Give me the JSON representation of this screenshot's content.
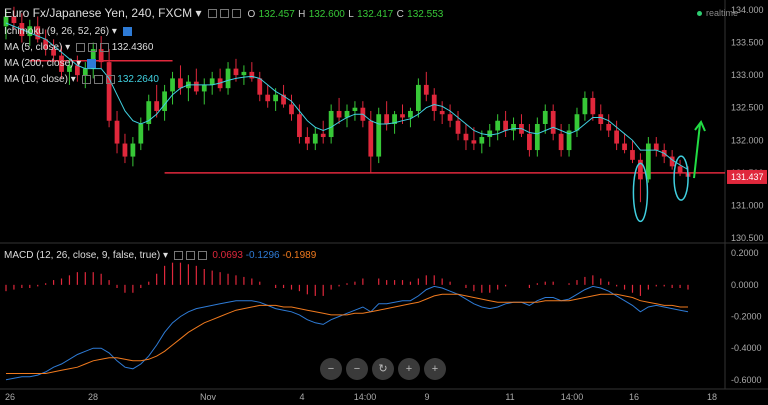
{
  "header": {
    "symbol": "Euro Fx/Japanese Yen, 240, FXCM",
    "open_label": "O",
    "open": "132.457",
    "high_label": "H",
    "high": "132.600",
    "low_label": "L",
    "low": "132.417",
    "close_label": "C",
    "close": "132.553",
    "realtime": "realtime"
  },
  "indicators": {
    "ichimoku": "Ichimoku (9, 26, 52, 26)",
    "ma1": "MA (5, close)",
    "ma1_value": "132.4360",
    "ma2": "MA (200, close)",
    "ma3": "MA (10, close)",
    "ma3_value": "132.2640",
    "macd": "MACD (12, 26, close, 9, false, true)",
    "macd_hist": "0.0693",
    "macd_line": "-0.1296",
    "macd_signal": "-0.1989"
  },
  "last_price_tag": "131.437",
  "colors": {
    "bull": "#37c837",
    "bear": "#e0283c",
    "ma_cyan": "#40d0e0",
    "resistance": "#e0283c",
    "arrow": "#22dd44",
    "macd_line": "#2e7bd6",
    "signal_line": "#f07a1e",
    "histogram": "#e0283c"
  },
  "icons": [
    "gear-icon",
    "eye-icon",
    "close-icon",
    "up-arrow-icon",
    "circle-highlight-icon"
  ],
  "nav_buttons": [
    "−",
    "−",
    "↻",
    "+",
    "+"
  ],
  "chart_data": [
    {
      "type": "candlestick",
      "title": "Euro Fx/Japanese Yen, 240, FXCM",
      "x_ticks": [
        "26",
        "28",
        "Nov",
        "4",
        "14:00",
        "9",
        "11",
        "14:00",
        "16",
        "18"
      ],
      "y_ticks": [
        "134.000",
        "133.500",
        "133.000",
        "132.500",
        "132.000",
        "131.500",
        "131.000",
        "130.500"
      ],
      "ylim": [
        130.5,
        134.0
      ],
      "grid": false,
      "candles": [
        {
          "o": 133.75,
          "h": 134.0,
          "l": 133.55,
          "c": 133.9
        },
        {
          "o": 133.9,
          "h": 134.05,
          "l": 133.7,
          "c": 133.8
        },
        {
          "o": 133.8,
          "h": 133.95,
          "l": 133.5,
          "c": 133.6
        },
        {
          "o": 133.6,
          "h": 133.85,
          "l": 133.45,
          "c": 133.75
        },
        {
          "o": 133.75,
          "h": 133.9,
          "l": 133.5,
          "c": 133.55
        },
        {
          "o": 133.55,
          "h": 133.7,
          "l": 133.3,
          "c": 133.4
        },
        {
          "o": 133.4,
          "h": 133.55,
          "l": 133.2,
          "c": 133.3
        },
        {
          "o": 133.3,
          "h": 133.45,
          "l": 132.95,
          "c": 133.05
        },
        {
          "o": 133.05,
          "h": 133.25,
          "l": 132.85,
          "c": 133.15
        },
        {
          "o": 133.15,
          "h": 133.3,
          "l": 132.9,
          "c": 133.0
        },
        {
          "o": 133.0,
          "h": 133.2,
          "l": 132.8,
          "c": 133.1
        },
        {
          "o": 133.1,
          "h": 133.5,
          "l": 132.95,
          "c": 133.4
        },
        {
          "o": 133.4,
          "h": 133.6,
          "l": 133.1,
          "c": 133.2
        },
        {
          "o": 133.2,
          "h": 133.4,
          "l": 132.2,
          "c": 132.3
        },
        {
          "o": 132.3,
          "h": 132.45,
          "l": 131.8,
          "c": 131.95
        },
        {
          "o": 131.95,
          "h": 132.1,
          "l": 131.65,
          "c": 131.75
        },
        {
          "o": 131.75,
          "h": 132.05,
          "l": 131.6,
          "c": 131.95
        },
        {
          "o": 131.95,
          "h": 132.35,
          "l": 131.85,
          "c": 132.25
        },
        {
          "o": 132.25,
          "h": 132.7,
          "l": 132.15,
          "c": 132.6
        },
        {
          "o": 132.6,
          "h": 132.85,
          "l": 132.35,
          "c": 132.45
        },
        {
          "o": 132.45,
          "h": 132.85,
          "l": 132.3,
          "c": 132.75
        },
        {
          "o": 132.75,
          "h": 133.05,
          "l": 132.55,
          "c": 132.95
        },
        {
          "o": 132.95,
          "h": 133.15,
          "l": 132.7,
          "c": 132.8
        },
        {
          "o": 132.8,
          "h": 133.0,
          "l": 132.6,
          "c": 132.9
        },
        {
          "o": 132.9,
          "h": 133.1,
          "l": 132.7,
          "c": 132.75
        },
        {
          "o": 132.75,
          "h": 132.95,
          "l": 132.55,
          "c": 132.85
        },
        {
          "o": 132.85,
          "h": 133.05,
          "l": 132.7,
          "c": 132.95
        },
        {
          "o": 132.95,
          "h": 133.1,
          "l": 132.75,
          "c": 132.8
        },
        {
          "o": 132.8,
          "h": 133.2,
          "l": 132.7,
          "c": 133.1
        },
        {
          "o": 133.1,
          "h": 133.25,
          "l": 132.9,
          "c": 133.0
        },
        {
          "o": 133.0,
          "h": 133.15,
          "l": 132.85,
          "c": 133.05
        },
        {
          "o": 133.05,
          "h": 133.2,
          "l": 132.9,
          "c": 132.95
        },
        {
          "o": 132.95,
          "h": 133.05,
          "l": 132.6,
          "c": 132.7
        },
        {
          "o": 132.7,
          "h": 132.85,
          "l": 132.5,
          "c": 132.6
        },
        {
          "o": 132.6,
          "h": 132.8,
          "l": 132.45,
          "c": 132.7
        },
        {
          "o": 132.7,
          "h": 132.85,
          "l": 132.5,
          "c": 132.55
        },
        {
          "o": 132.55,
          "h": 132.7,
          "l": 132.3,
          "c": 132.4
        },
        {
          "o": 132.4,
          "h": 132.55,
          "l": 131.95,
          "c": 132.05
        },
        {
          "o": 132.05,
          "h": 132.2,
          "l": 131.85,
          "c": 131.95
        },
        {
          "o": 131.95,
          "h": 132.2,
          "l": 131.85,
          "c": 132.1
        },
        {
          "o": 132.1,
          "h": 132.3,
          "l": 131.95,
          "c": 132.05
        },
        {
          "o": 132.05,
          "h": 132.55,
          "l": 131.95,
          "c": 132.45
        },
        {
          "o": 132.45,
          "h": 132.65,
          "l": 132.25,
          "c": 132.35
        },
        {
          "o": 132.35,
          "h": 132.55,
          "l": 132.2,
          "c": 132.45
        },
        {
          "o": 132.45,
          "h": 132.6,
          "l": 132.3,
          "c": 132.5
        },
        {
          "o": 132.5,
          "h": 132.6,
          "l": 132.2,
          "c": 132.3
        },
        {
          "o": 132.3,
          "h": 132.45,
          "l": 131.5,
          "c": 131.75
        },
        {
          "o": 131.75,
          "h": 132.5,
          "l": 131.65,
          "c": 132.4
        },
        {
          "o": 132.4,
          "h": 132.6,
          "l": 132.15,
          "c": 132.25
        },
        {
          "o": 132.25,
          "h": 132.45,
          "l": 132.1,
          "c": 132.4
        },
        {
          "o": 132.4,
          "h": 132.55,
          "l": 132.25,
          "c": 132.35
        },
        {
          "o": 132.35,
          "h": 132.5,
          "l": 132.2,
          "c": 132.45
        },
        {
          "o": 132.45,
          "h": 132.95,
          "l": 132.35,
          "c": 132.85
        },
        {
          "o": 132.85,
          "h": 133.05,
          "l": 132.6,
          "c": 132.7
        },
        {
          "o": 132.7,
          "h": 132.8,
          "l": 132.3,
          "c": 132.45
        },
        {
          "o": 132.45,
          "h": 132.6,
          "l": 132.25,
          "c": 132.4
        },
        {
          "o": 132.4,
          "h": 132.55,
          "l": 132.2,
          "c": 132.3
        },
        {
          "o": 132.3,
          "h": 132.45,
          "l": 132.0,
          "c": 132.1
        },
        {
          "o": 132.1,
          "h": 132.25,
          "l": 131.85,
          "c": 132.0
        },
        {
          "o": 132.0,
          "h": 132.2,
          "l": 131.85,
          "c": 131.95
        },
        {
          "o": 131.95,
          "h": 132.15,
          "l": 131.8,
          "c": 132.05
        },
        {
          "o": 132.05,
          "h": 132.25,
          "l": 131.9,
          "c": 132.15
        },
        {
          "o": 132.15,
          "h": 132.4,
          "l": 132.0,
          "c": 132.3
        },
        {
          "o": 132.3,
          "h": 132.45,
          "l": 132.05,
          "c": 132.15
        },
        {
          "o": 132.15,
          "h": 132.35,
          "l": 132.0,
          "c": 132.25
        },
        {
          "o": 132.25,
          "h": 132.4,
          "l": 132.05,
          "c": 132.1
        },
        {
          "o": 132.1,
          "h": 132.25,
          "l": 131.75,
          "c": 131.85
        },
        {
          "o": 131.85,
          "h": 132.35,
          "l": 131.75,
          "c": 132.25
        },
        {
          "o": 132.25,
          "h": 132.55,
          "l": 132.1,
          "c": 132.45
        },
        {
          "o": 132.45,
          "h": 132.55,
          "l": 132.0,
          "c": 132.1
        },
        {
          "o": 132.1,
          "h": 132.25,
          "l": 131.75,
          "c": 131.85
        },
        {
          "o": 131.85,
          "h": 132.25,
          "l": 131.75,
          "c": 132.15
        },
        {
          "o": 132.15,
          "h": 132.5,
          "l": 132.05,
          "c": 132.4
        },
        {
          "o": 132.4,
          "h": 132.75,
          "l": 132.3,
          "c": 132.65
        },
        {
          "o": 132.65,
          "h": 132.75,
          "l": 132.3,
          "c": 132.4
        },
        {
          "o": 132.4,
          "h": 132.55,
          "l": 132.15,
          "c": 132.25
        },
        {
          "o": 132.25,
          "h": 132.4,
          "l": 132.05,
          "c": 132.15
        },
        {
          "o": 132.15,
          "h": 132.3,
          "l": 131.85,
          "c": 131.95
        },
        {
          "o": 131.95,
          "h": 132.1,
          "l": 131.8,
          "c": 131.85
        },
        {
          "o": 131.85,
          "h": 132.0,
          "l": 131.65,
          "c": 131.7
        },
        {
          "o": 131.7,
          "h": 131.8,
          "l": 131.05,
          "c": 131.4
        },
        {
          "o": 131.4,
          "h": 132.05,
          "l": 131.35,
          "c": 131.95
        },
        {
          "o": 131.95,
          "h": 132.05,
          "l": 131.75,
          "c": 131.85
        },
        {
          "o": 131.85,
          "h": 131.95,
          "l": 131.65,
          "c": 131.75
        },
        {
          "o": 131.75,
          "h": 131.85,
          "l": 131.55,
          "c": 131.6
        },
        {
          "o": 131.6,
          "h": 131.7,
          "l": 131.45,
          "c": 131.5
        },
        {
          "o": 131.5,
          "h": 131.6,
          "l": 131.38,
          "c": 131.44
        }
      ],
      "ma": [
        133.8,
        133.75,
        133.7,
        133.65,
        133.6,
        133.55,
        133.45,
        133.35,
        133.25,
        133.15,
        133.1,
        133.1,
        133.1,
        132.95,
        132.7,
        132.45,
        132.3,
        132.25,
        132.3,
        132.4,
        132.55,
        132.7,
        132.8,
        132.85,
        132.85,
        132.85,
        132.85,
        132.88,
        132.92,
        132.95,
        132.97,
        132.98,
        132.95,
        132.85,
        132.75,
        132.68,
        132.6,
        132.45,
        132.3,
        132.2,
        132.15,
        132.2,
        132.28,
        132.35,
        132.4,
        132.4,
        132.3,
        132.25,
        132.25,
        132.27,
        132.3,
        132.33,
        132.4,
        132.5,
        132.55,
        132.52,
        132.45,
        132.35,
        132.25,
        132.15,
        132.1,
        132.08,
        132.1,
        132.15,
        132.18,
        132.18,
        132.12,
        132.1,
        132.15,
        132.2,
        132.15,
        132.1,
        132.15,
        132.25,
        132.35,
        132.35,
        132.3,
        132.2,
        132.1,
        132.0,
        131.85,
        131.85,
        131.85,
        131.8,
        131.7,
        131.62,
        131.55
      ],
      "resistance_level": 133.22,
      "support_level": 131.5,
      "last_price": 131.437
    },
    {
      "type": "macd",
      "title": "MACD (12, 26, close, 9, false, true)",
      "y_ticks": [
        "0.2000",
        "0.0000",
        "-0.2000",
        "-0.4000",
        "-0.6000"
      ],
      "ylim": [
        -0.62,
        0.22
      ],
      "grid": false,
      "macd": [
        -0.6,
        -0.59,
        -0.58,
        -0.58,
        -0.57,
        -0.55,
        -0.52,
        -0.5,
        -0.47,
        -0.44,
        -0.42,
        -0.4,
        -0.4,
        -0.43,
        -0.48,
        -0.52,
        -0.53,
        -0.5,
        -0.45,
        -0.38,
        -0.3,
        -0.24,
        -0.2,
        -0.17,
        -0.15,
        -0.14,
        -0.13,
        -0.12,
        -0.11,
        -0.1,
        -0.1,
        -0.1,
        -0.11,
        -0.13,
        -0.15,
        -0.16,
        -0.17,
        -0.19,
        -0.22,
        -0.24,
        -0.25,
        -0.22,
        -0.2,
        -0.18,
        -0.16,
        -0.14,
        -0.17,
        -0.12,
        -0.12,
        -0.11,
        -0.1,
        -0.1,
        -0.07,
        -0.03,
        -0.01,
        -0.02,
        -0.04,
        -0.06,
        -0.09,
        -0.12,
        -0.14,
        -0.15,
        -0.14,
        -0.12,
        -0.11,
        -0.11,
        -0.13,
        -0.1,
        -0.08,
        -0.08,
        -0.1,
        -0.09,
        -0.06,
        -0.03,
        -0.01,
        -0.02,
        -0.04,
        -0.07,
        -0.1,
        -0.13,
        -0.17,
        -0.14,
        -0.13,
        -0.14,
        -0.15,
        -0.16,
        -0.17
      ],
      "signal": [
        -0.56,
        -0.56,
        -0.56,
        -0.56,
        -0.56,
        -0.56,
        -0.55,
        -0.54,
        -0.53,
        -0.52,
        -0.5,
        -0.48,
        -0.47,
        -0.46,
        -0.46,
        -0.47,
        -0.48,
        -0.48,
        -0.47,
        -0.45,
        -0.42,
        -0.38,
        -0.34,
        -0.3,
        -0.27,
        -0.24,
        -0.22,
        -0.2,
        -0.18,
        -0.16,
        -0.15,
        -0.14,
        -0.13,
        -0.13,
        -0.13,
        -0.14,
        -0.14,
        -0.15,
        -0.16,
        -0.17,
        -0.18,
        -0.19,
        -0.19,
        -0.19,
        -0.18,
        -0.18,
        -0.17,
        -0.16,
        -0.15,
        -0.14,
        -0.13,
        -0.12,
        -0.11,
        -0.09,
        -0.07,
        -0.06,
        -0.06,
        -0.06,
        -0.07,
        -0.08,
        -0.09,
        -0.1,
        -0.11,
        -0.11,
        -0.11,
        -0.11,
        -0.11,
        -0.11,
        -0.1,
        -0.1,
        -0.1,
        -0.1,
        -0.09,
        -0.08,
        -0.07,
        -0.06,
        -0.06,
        -0.06,
        -0.07,
        -0.08,
        -0.1,
        -0.11,
        -0.12,
        -0.13,
        -0.13,
        -0.14,
        -0.14
      ]
    }
  ]
}
